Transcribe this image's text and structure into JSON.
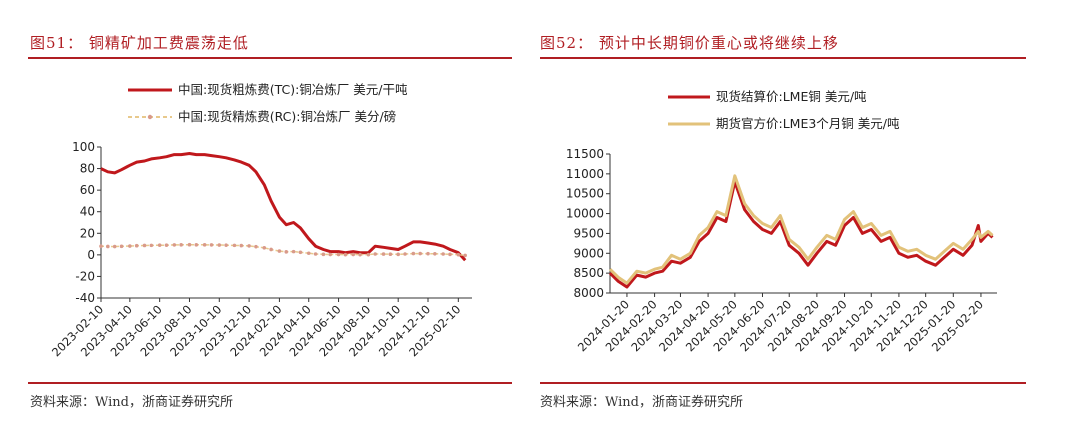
{
  "panels": [
    {
      "title": "图51：  铜精矿加工费震荡走低",
      "source": "资料来源：Wind，浙商证券研究所"
    },
    {
      "title": "图52：  预计中长期铜价重心或将继续上移",
      "source": "资料来源：Wind，浙商证券研究所"
    }
  ],
  "colors": {
    "accent": "#b01e23",
    "series_red": "#c0181c",
    "series_gold": "#e2c27a",
    "dots": "#d99a8a"
  },
  "chart_data": [
    {
      "type": "line",
      "title": "",
      "xlabel": "",
      "ylabel": "",
      "ylim": [
        -40,
        100
      ],
      "yticks": [
        -40,
        -20,
        0,
        20,
        40,
        60,
        80,
        100
      ],
      "x_tick_labels": [
        "2023-02-10",
        "2023-04-10",
        "2023-06-10",
        "2023-08-10",
        "2023-10-10",
        "2023-12-10",
        "2024-02-10",
        "2024-04-10",
        "2024-06-10",
        "2024-08-10",
        "2024-10-10",
        "2024-12-10",
        "2025-02-10"
      ],
      "grid": false,
      "legend": "top",
      "series": [
        {
          "name": "中国:现货粗炼费(TC):铜冶炼厂 美元/干吨",
          "style": "solid",
          "x": [
            "2023-02-10",
            "2023-02-24",
            "2023-03-10",
            "2023-03-24",
            "2023-04-10",
            "2023-04-24",
            "2023-05-10",
            "2023-05-24",
            "2023-06-10",
            "2023-06-24",
            "2023-07-10",
            "2023-07-24",
            "2023-08-10",
            "2023-08-24",
            "2023-09-10",
            "2023-09-24",
            "2023-10-10",
            "2023-10-24",
            "2023-11-10",
            "2023-11-24",
            "2023-12-10",
            "2023-12-24",
            "2024-01-10",
            "2024-01-24",
            "2024-02-10",
            "2024-02-24",
            "2024-03-10",
            "2024-03-24",
            "2024-04-10",
            "2024-04-24",
            "2024-05-10",
            "2024-05-24",
            "2024-06-10",
            "2024-06-24",
            "2024-07-10",
            "2024-07-24",
            "2024-08-10",
            "2024-08-24",
            "2024-09-10",
            "2024-09-24",
            "2024-10-10",
            "2024-10-24",
            "2024-11-10",
            "2024-11-24",
            "2024-12-10",
            "2024-12-24",
            "2025-01-10",
            "2025-01-24",
            "2025-02-10",
            "2025-02-24"
          ],
          "values": [
            80,
            77,
            76,
            79,
            83,
            86,
            87,
            89,
            90,
            91,
            93,
            93,
            94,
            93,
            93,
            92,
            91,
            90,
            88,
            86,
            83,
            77,
            65,
            50,
            35,
            28,
            30,
            25,
            15,
            8,
            5,
            3,
            3,
            2,
            3,
            2,
            2,
            8,
            7,
            6,
            5,
            8,
            12,
            12,
            11,
            10,
            8,
            5,
            2,
            -5
          ]
        },
        {
          "name": "中国:现货精炼费(RC):铜冶炼厂 美分/磅",
          "style": "dotted-markers",
          "x": [
            "2023-02-10",
            "2023-02-24",
            "2023-03-10",
            "2023-03-24",
            "2023-04-10",
            "2023-04-24",
            "2023-05-10",
            "2023-05-24",
            "2023-06-10",
            "2023-06-24",
            "2023-07-10",
            "2023-07-24",
            "2023-08-10",
            "2023-08-24",
            "2023-09-10",
            "2023-09-24",
            "2023-10-10",
            "2023-10-24",
            "2023-11-10",
            "2023-11-24",
            "2023-12-10",
            "2023-12-24",
            "2024-01-10",
            "2024-01-24",
            "2024-02-10",
            "2024-02-24",
            "2024-03-10",
            "2024-03-24",
            "2024-04-10",
            "2024-04-24",
            "2024-05-10",
            "2024-05-24",
            "2024-06-10",
            "2024-06-24",
            "2024-07-10",
            "2024-07-24",
            "2024-08-10",
            "2024-08-24",
            "2024-09-10",
            "2024-09-24",
            "2024-10-10",
            "2024-10-24",
            "2024-11-10",
            "2024-11-24",
            "2024-12-10",
            "2024-12-24",
            "2025-01-10",
            "2025-01-24",
            "2025-02-10",
            "2025-02-24"
          ],
          "values": [
            8,
            7.8,
            7.7,
            7.9,
            8.2,
            8.5,
            8.7,
            8.8,
            9,
            9,
            9.2,
            9.3,
            9.4,
            9.3,
            9.3,
            9.2,
            9.1,
            9,
            8.8,
            8.6,
            8.3,
            7.6,
            6.5,
            5,
            3.5,
            2.8,
            3,
            2.4,
            1.5,
            0.8,
            0.5,
            0.3,
            0.3,
            0.2,
            0.3,
            0.2,
            0.2,
            0.8,
            0.7,
            0.6,
            0.5,
            0.8,
            1.2,
            1.2,
            1.1,
            1,
            0.8,
            0.5,
            0.2,
            -0.5
          ]
        }
      ]
    },
    {
      "type": "line",
      "title": "",
      "xlabel": "",
      "ylabel": "",
      "ylim": [
        8000,
        11500
      ],
      "yticks": [
        8000,
        8500,
        9000,
        9500,
        10000,
        10500,
        11000,
        11500
      ],
      "x_tick_labels": [
        "2024-01-20",
        "2024-02-20",
        "2024-03-20",
        "2024-04-20",
        "2024-05-20",
        "2024-06-20",
        "2024-07-20",
        "2024-08-20",
        "2024-09-20",
        "2024-10-20",
        "2024-11-20",
        "2024-12-20",
        "2025-01-20",
        "2025-02-20"
      ],
      "grid": false,
      "legend": "top",
      "series": [
        {
          "name": "现货结算价:LME铜 美元/吨",
          "x": [
            "2024-01-01",
            "2024-01-10",
            "2024-01-20",
            "2024-01-31",
            "2024-02-10",
            "2024-02-20",
            "2024-02-29",
            "2024-03-10",
            "2024-03-20",
            "2024-03-31",
            "2024-04-10",
            "2024-04-20",
            "2024-04-30",
            "2024-05-10",
            "2024-05-20",
            "2024-05-31",
            "2024-06-10",
            "2024-06-20",
            "2024-06-30",
            "2024-07-10",
            "2024-07-20",
            "2024-07-31",
            "2024-08-10",
            "2024-08-20",
            "2024-08-31",
            "2024-09-10",
            "2024-09-20",
            "2024-09-30",
            "2024-10-10",
            "2024-10-20",
            "2024-10-31",
            "2024-11-10",
            "2024-11-20",
            "2024-11-30",
            "2024-12-10",
            "2024-12-20",
            "2024-12-31",
            "2025-01-10",
            "2025-01-20",
            "2025-01-31",
            "2025-02-10",
            "2025-02-17",
            "2025-02-20",
            "2025-02-28",
            "2025-03-05"
          ],
          "values": [
            8500,
            8300,
            8150,
            8450,
            8400,
            8500,
            8550,
            8800,
            8750,
            8900,
            9300,
            9500,
            9900,
            9800,
            10800,
            10100,
            9800,
            9600,
            9500,
            9800,
            9200,
            9000,
            8700,
            9000,
            9300,
            9200,
            9700,
            9900,
            9500,
            9600,
            9300,
            9400,
            9000,
            8900,
            8950,
            8800,
            8700,
            8900,
            9100,
            8950,
            9200,
            9700,
            9300,
            9500,
            9400
          ]
        },
        {
          "name": "期货官方价:LME3个月铜 美元/吨",
          "x": [
            "2024-01-01",
            "2024-01-10",
            "2024-01-20",
            "2024-01-31",
            "2024-02-10",
            "2024-02-20",
            "2024-02-29",
            "2024-03-10",
            "2024-03-20",
            "2024-03-31",
            "2024-04-10",
            "2024-04-20",
            "2024-04-30",
            "2024-05-10",
            "2024-05-20",
            "2024-05-31",
            "2024-06-10",
            "2024-06-20",
            "2024-06-30",
            "2024-07-10",
            "2024-07-20",
            "2024-07-31",
            "2024-08-10",
            "2024-08-20",
            "2024-08-31",
            "2024-09-10",
            "2024-09-20",
            "2024-09-30",
            "2024-10-10",
            "2024-10-20",
            "2024-10-31",
            "2024-11-10",
            "2024-11-20",
            "2024-11-30",
            "2024-12-10",
            "2024-12-20",
            "2024-12-31",
            "2025-01-10",
            "2025-01-20",
            "2025-01-31",
            "2025-02-10",
            "2025-02-17",
            "2025-02-20",
            "2025-02-28",
            "2025-03-05"
          ],
          "values": [
            8600,
            8400,
            8250,
            8550,
            8500,
            8600,
            8650,
            8950,
            8850,
            9000,
            9450,
            9650,
            10050,
            9950,
            10950,
            10250,
            9950,
            9750,
            9650,
            9950,
            9350,
            9150,
            8850,
            9150,
            9450,
            9350,
            9850,
            10050,
            9650,
            9750,
            9450,
            9550,
            9150,
            9050,
            9100,
            8950,
            8850,
            9050,
            9250,
            9100,
            9350,
            9550,
            9400,
            9550,
            9450
          ]
        }
      ]
    }
  ]
}
